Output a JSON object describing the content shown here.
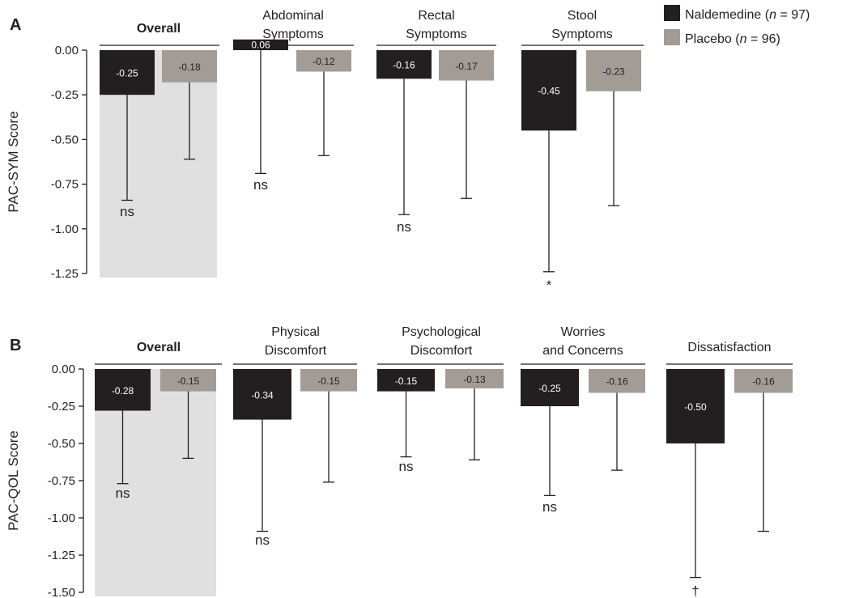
{
  "legend": {
    "items": [
      {
        "label": "Naldemedine",
        "n": "97",
        "color": "#231f20"
      },
      {
        "label": "Placebo",
        "n": "96",
        "color": "#a39b96"
      }
    ],
    "placement": "top-right"
  },
  "colors": {
    "naldemedine": "#231f20",
    "placebo": "#a39b96",
    "overall_bg": "#e0e0e0",
    "axis": "#231f20"
  },
  "chart_data": [
    {
      "type": "bar",
      "panel_label": "A",
      "ylabel": "PAC-SYM Score",
      "ylim": [
        -1.25,
        0
      ],
      "yticks": [
        "0.00",
        "-0.25",
        "-0.50",
        "-0.75",
        "-1.00",
        "-1.25"
      ],
      "categories": [
        "Overall",
        "Abdominal Symptoms",
        "Rectal Symptoms",
        "Stool Symptoms"
      ],
      "category_lines": [
        [
          "Overall"
        ],
        [
          "Abdominal",
          "Symptoms"
        ],
        [
          "Rectal",
          "Symptoms"
        ],
        [
          "Stool",
          "Symptoms"
        ]
      ],
      "series": [
        {
          "name": "Naldemedine",
          "values": [
            -0.25,
            0.06,
            -0.16,
            -0.45
          ],
          "value_labels": [
            "-0.25",
            "0.06",
            "-0.16",
            "-0.45"
          ],
          "error_low": [
            -0.84,
            -0.69,
            -0.92,
            -1.24
          ]
        },
        {
          "name": "Placebo",
          "values": [
            -0.18,
            -0.12,
            -0.17,
            -0.23
          ],
          "value_labels": [
            "-0.18",
            "-0.12",
            "-0.17",
            "-0.23"
          ],
          "error_low": [
            -0.61,
            -0.59,
            -0.83,
            -0.87
          ]
        }
      ],
      "significance": [
        "ns",
        "ns",
        "ns",
        "*"
      ]
    },
    {
      "type": "bar",
      "panel_label": "B",
      "ylabel": "PAC-QOL Score",
      "ylim": [
        -1.5,
        0
      ],
      "yticks": [
        "0.00",
        "-0.25",
        "-0.50",
        "-0.75",
        "-1.00",
        "-1.25",
        "-1.50"
      ],
      "categories": [
        "Overall",
        "Physical Discomfort",
        "Psychological Discomfort",
        "Worries and Concerns",
        "Dissatisfaction"
      ],
      "category_lines": [
        [
          "Overall"
        ],
        [
          "Physical",
          "Discomfort"
        ],
        [
          "Psychological",
          "Discomfort"
        ],
        [
          "Worries",
          "and Concerns"
        ],
        [
          "Dissatisfaction"
        ]
      ],
      "series": [
        {
          "name": "Naldemedine",
          "values": [
            -0.28,
            -0.34,
            -0.15,
            -0.25,
            -0.5
          ],
          "value_labels": [
            "-0.28",
            "-0.34",
            "-0.15",
            "-0.25",
            "-0.50"
          ],
          "error_low": [
            -0.77,
            -1.09,
            -0.59,
            -0.85,
            -1.4
          ]
        },
        {
          "name": "Placebo",
          "values": [
            -0.15,
            -0.15,
            -0.13,
            -0.16,
            -0.16
          ],
          "value_labels": [
            "-0.15",
            "-0.15",
            "-0.13",
            "-0.16",
            "-0.16"
          ],
          "error_low": [
            -0.6,
            -0.76,
            -0.61,
            -0.68,
            -1.09
          ]
        }
      ],
      "significance": [
        "ns",
        "ns",
        "ns",
        "ns",
        "†"
      ]
    }
  ]
}
